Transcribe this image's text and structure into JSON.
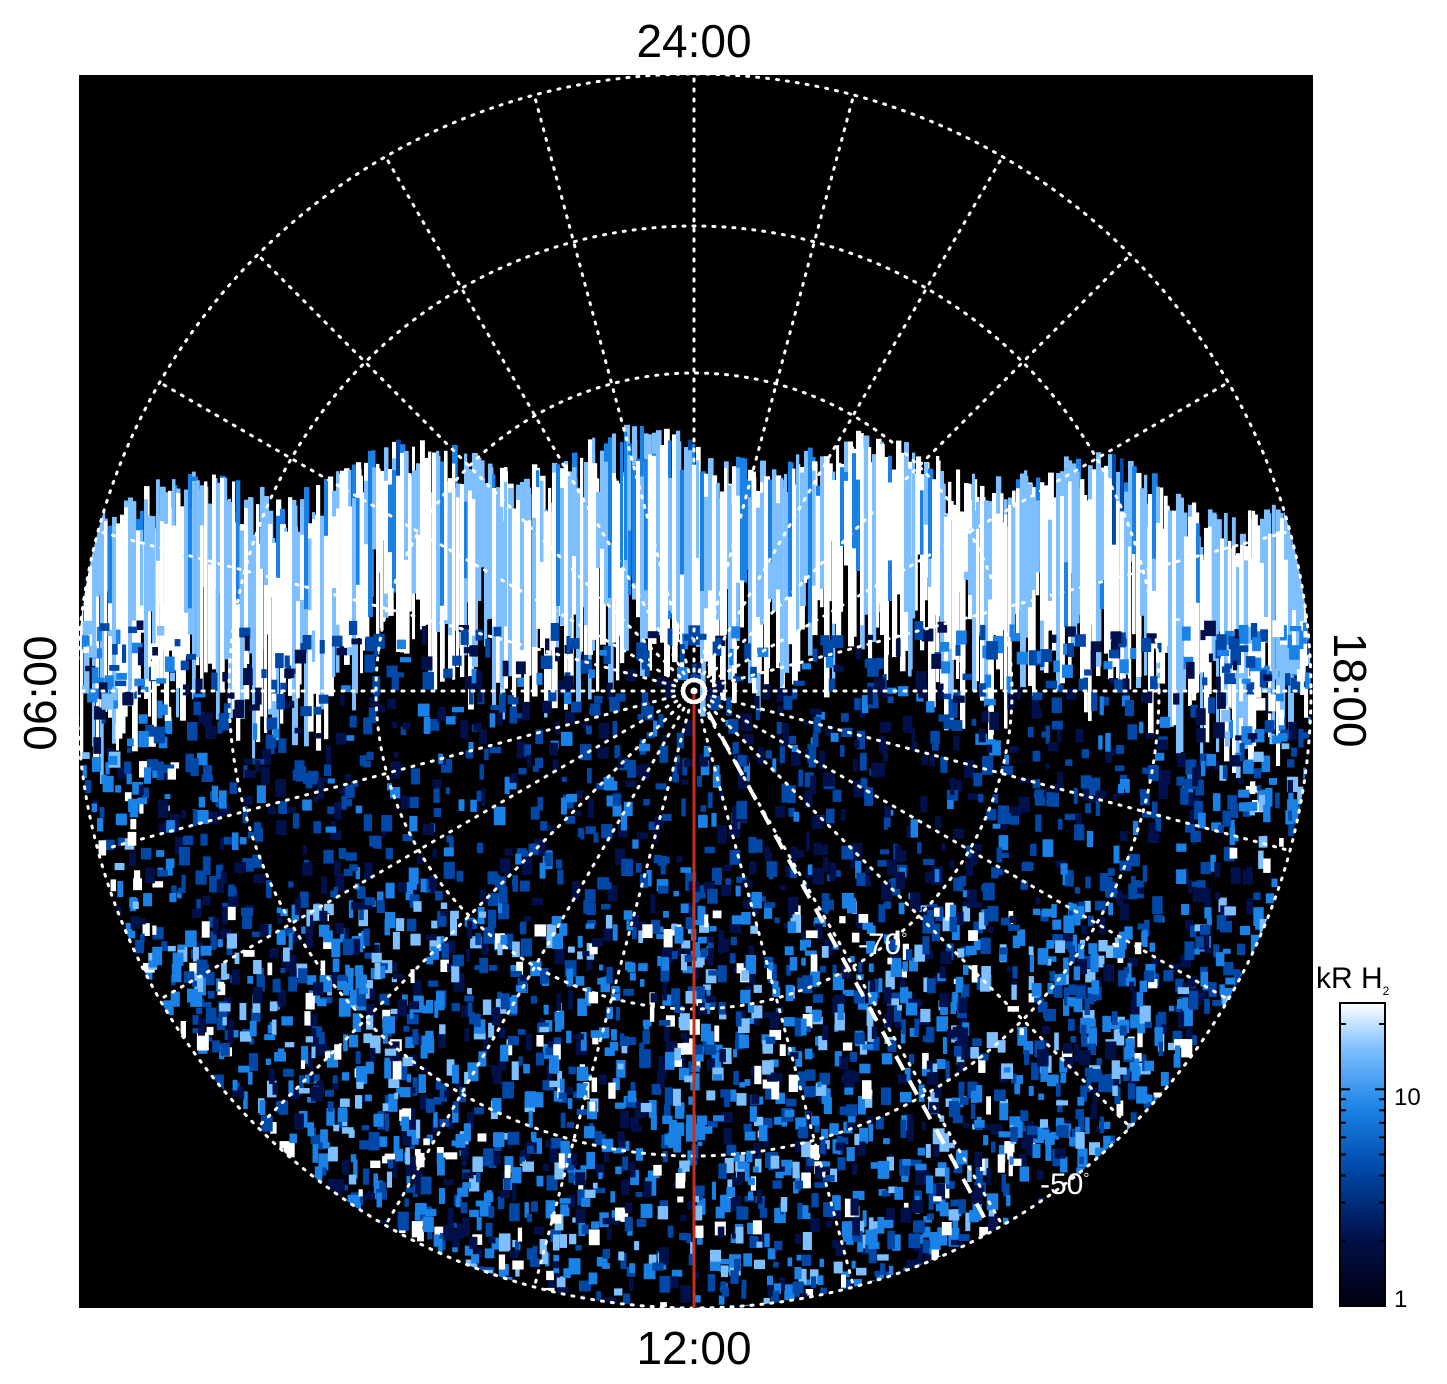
{
  "local_time_labels": {
    "top": "24:00",
    "bottom": "12:00",
    "left": "06:00",
    "right": "18:00"
  },
  "latitude_labels": {
    "inner": "-70",
    "outer": "-50",
    "degree_symbol": "°"
  },
  "colorbar": {
    "unit": "kR H",
    "unit_subscript": "2",
    "tick_labels": [
      "10",
      "1"
    ],
    "scale": "log",
    "colors": [
      "#000010",
      "#00104a",
      "#0048a8",
      "#1a82e6",
      "#7ec0ff",
      "#ffffff"
    ]
  },
  "colors": {
    "background": "#000000",
    "grid": "#ffffff",
    "meridian_line": "#c8301a",
    "dashed_line": "#ffffff"
  }
}
